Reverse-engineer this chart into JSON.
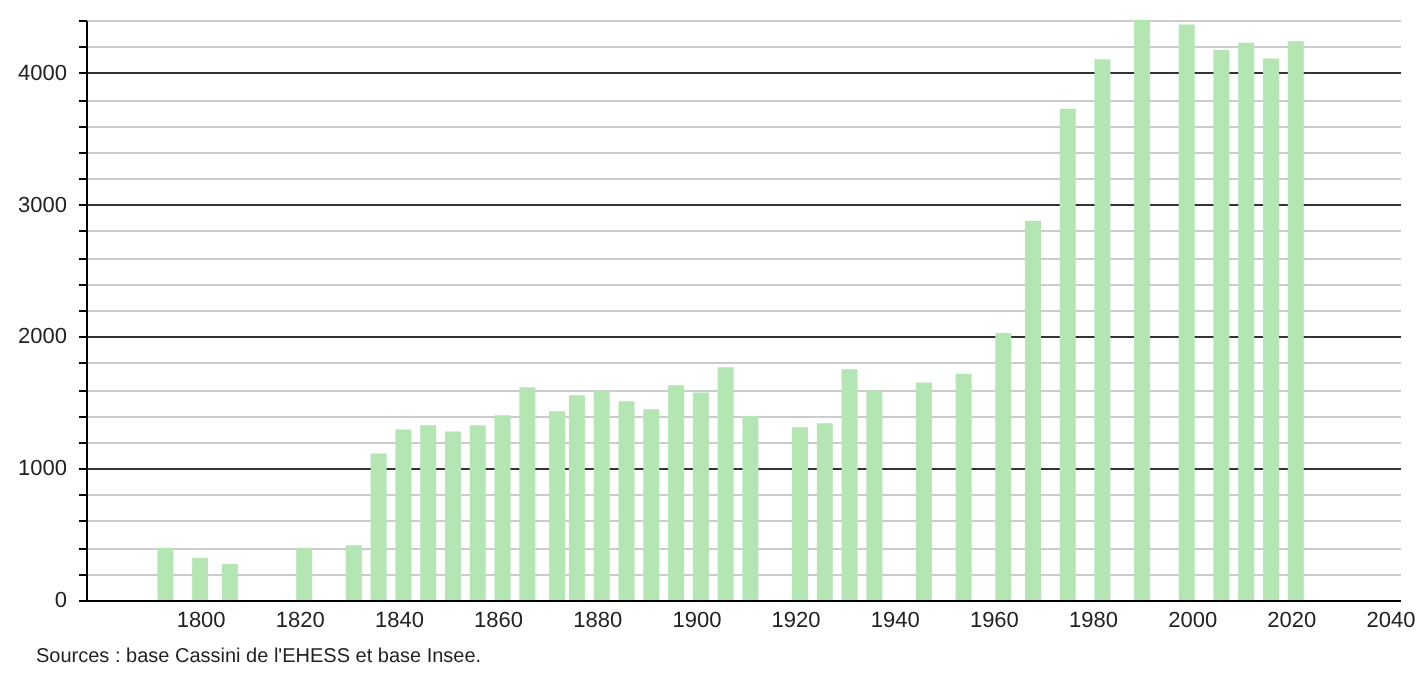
{
  "chart_data": {
    "type": "bar",
    "x": [
      1793,
      1800,
      1806,
      1821,
      1831,
      1836,
      1841,
      1846,
      1851,
      1856,
      1861,
      1866,
      1872,
      1876,
      1881,
      1886,
      1891,
      1896,
      1901,
      1906,
      1911,
      1921,
      1926,
      1931,
      1936,
      1946,
      1954,
      1962,
      1968,
      1975,
      1982,
      1990,
      1999,
      2006,
      2011,
      2016,
      2021
    ],
    "values": [
      396,
      320,
      274,
      396,
      416,
      1112,
      1294,
      1325,
      1279,
      1325,
      1401,
      1614,
      1431,
      1553,
      1589,
      1508,
      1447,
      1629,
      1574,
      1766,
      1396,
      1310,
      1340,
      1751,
      1589,
      1650,
      1716,
      2025,
      2878,
      3726,
      4102,
      4400,
      4365,
      4173,
      4228,
      4107,
      4239
    ],
    "color": "#b3e6b3",
    "xlim": [
      1779,
      2040
    ],
    "xticks": [
      1800,
      1820,
      1840,
      1860,
      1880,
      1900,
      1920,
      1940,
      1960,
      1980,
      2000,
      2020,
      2040
    ],
    "ylim": [
      0,
      4400
    ],
    "yticks": [
      0,
      {
        "value": 200,
        "label": null
      },
      {
        "value": 400,
        "label": null
      },
      {
        "value": 600,
        "label": null
      },
      {
        "value": 800,
        "label": null
      },
      1000,
      {
        "value": 1200,
        "label": null
      },
      {
        "value": 1400,
        "label": null
      },
      {
        "value": 1600,
        "label": null
      },
      {
        "value": 1800,
        "label": null
      },
      2000,
      {
        "value": 2200,
        "label": null
      },
      {
        "value": 2400,
        "label": null
      },
      {
        "value": 2600,
        "label": null
      },
      {
        "value": 2800,
        "label": null
      },
      3000,
      {
        "value": 3200,
        "label": null
      },
      {
        "value": 3400,
        "label": null
      },
      {
        "value": 3600,
        "label": null
      },
      {
        "value": 3800,
        "label": null
      },
      4000,
      {
        "value": 4200,
        "label": null
      },
      {
        "value": 4400,
        "label": null
      }
    ],
    "grid": "y",
    "annotations": [
      "Sources : base Cassini de l'EHESS et base Insee."
    ]
  }
}
